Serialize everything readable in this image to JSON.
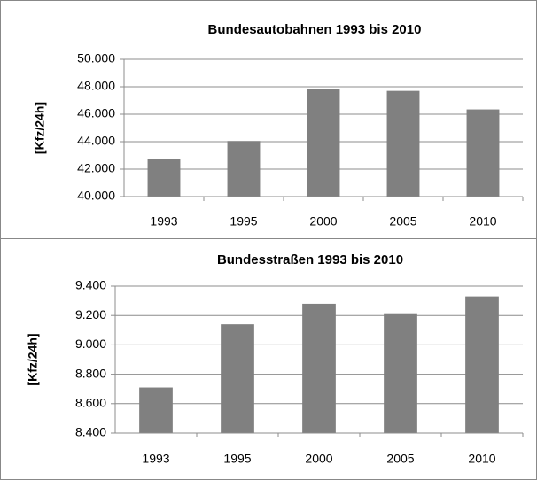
{
  "chart_data": [
    {
      "type": "bar",
      "title": "Bundesautobahnen 1993 bis 2010",
      "y_label": "[Kfz/24h]",
      "categories": [
        "1993",
        "1995",
        "2000",
        "2005",
        "2010"
      ],
      "values": [
        42750,
        44050,
        47850,
        47700,
        46350
      ],
      "color": "#808080",
      "ylim": [
        40000,
        50000
      ],
      "yticks": [
        {
          "value": 40000,
          "label": "40.000"
        },
        {
          "value": 42000,
          "label": "42.000"
        },
        {
          "value": 44000,
          "label": "44.000"
        },
        {
          "value": 46000,
          "label": "46.000"
        },
        {
          "value": 48000,
          "label": "48.000"
        },
        {
          "value": 50000,
          "label": "50.000"
        }
      ],
      "grid": true
    },
    {
      "type": "bar",
      "title": "Bundesstraßen 1993 bis 2010",
      "y_label": "[Kfz/24h]",
      "categories": [
        "1993",
        "1995",
        "2000",
        "2005",
        "2010"
      ],
      "values": [
        8710,
        9140,
        9280,
        9215,
        9330
      ],
      "color": "#808080",
      "ylim": [
        8400,
        9400
      ],
      "yticks": [
        {
          "value": 8400,
          "label": "8.400"
        },
        {
          "value": 8600,
          "label": "8.600"
        },
        {
          "value": 8800,
          "label": "8.800"
        },
        {
          "value": 9000,
          "label": "9.000"
        },
        {
          "value": 9200,
          "label": "9.200"
        },
        {
          "value": 9400,
          "label": "9.400"
        }
      ],
      "grid": true
    }
  ]
}
